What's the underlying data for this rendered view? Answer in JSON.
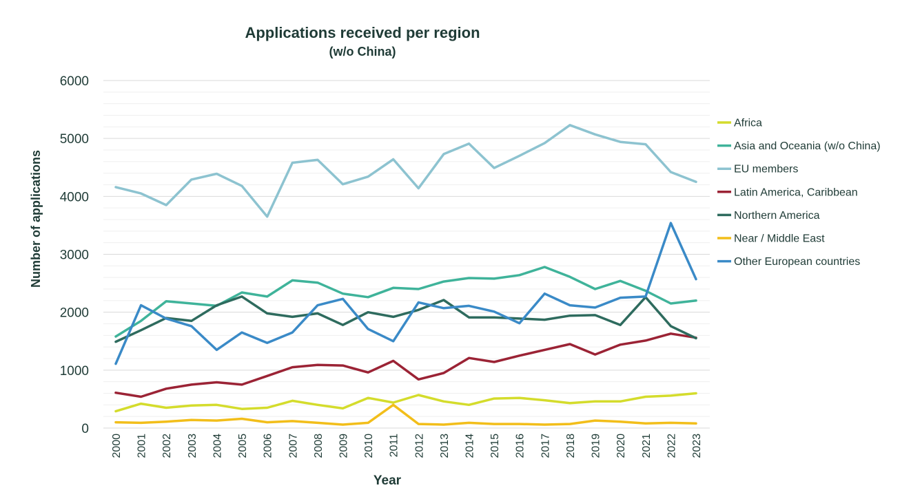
{
  "chart_data": {
    "type": "line",
    "title": "Applications received per region",
    "subtitle": "(w/o China)",
    "xlabel": "Year",
    "ylabel": "Number of applications",
    "ylim": [
      0,
      6000
    ],
    "yticks": [
      "0",
      "1000",
      "2000",
      "3000",
      "4000",
      "5000",
      "6000"
    ],
    "ytick_values": [
      0,
      1000,
      2000,
      3000,
      4000,
      5000,
      6000
    ],
    "minor_step": 200,
    "categories": [
      "2000",
      "2001",
      "2002",
      "2003",
      "2004",
      "2005",
      "2006",
      "2007",
      "2008",
      "2009",
      "2010",
      "2011",
      "2012",
      "2013",
      "2014",
      "2015",
      "2016",
      "2017",
      "2018",
      "2019",
      "2020",
      "2021",
      "2022",
      "2023"
    ],
    "legend_position": "right",
    "series": [
      {
        "name": "Africa",
        "color": "#d4dc2c",
        "values": [
          290,
          420,
          350,
          390,
          400,
          330,
          350,
          470,
          400,
          340,
          520,
          440,
          570,
          460,
          400,
          510,
          520,
          480,
          430,
          460,
          460,
          540,
          560,
          600
        ]
      },
      {
        "name": "Asia and Oceania (w/o China)",
        "color": "#3fb39a",
        "values": [
          1580,
          1850,
          2190,
          2150,
          2110,
          2340,
          2270,
          2550,
          2510,
          2320,
          2260,
          2420,
          2400,
          2530,
          2590,
          2580,
          2640,
          2780,
          2610,
          2400,
          2540,
          2370,
          2150,
          2200
        ]
      },
      {
        "name": "EU members",
        "color": "#8dc3d0",
        "values": [
          4160,
          4050,
          3850,
          4290,
          4390,
          4180,
          3650,
          4580,
          4630,
          4210,
          4340,
          4640,
          4140,
          4730,
          4910,
          4490,
          4700,
          4920,
          5230,
          5070,
          4940,
          4900,
          4420,
          4250
        ]
      },
      {
        "name": "Latin America, Caribbean",
        "color": "#9b2335",
        "values": [
          610,
          540,
          680,
          750,
          790,
          750,
          900,
          1050,
          1090,
          1080,
          960,
          1160,
          840,
          950,
          1210,
          1140,
          1250,
          1350,
          1450,
          1270,
          1440,
          1510,
          1630,
          1560
        ]
      },
      {
        "name": "Northern America",
        "color": "#2e6b5e",
        "values": [
          1490,
          1690,
          1900,
          1850,
          2120,
          2270,
          1980,
          1920,
          1980,
          1780,
          2000,
          1920,
          2040,
          2210,
          1910,
          1910,
          1890,
          1870,
          1940,
          1950,
          1780,
          2260,
          1760,
          1550
        ]
      },
      {
        "name": "Near / Middle East",
        "color": "#f2be1a",
        "values": [
          100,
          90,
          110,
          140,
          130,
          160,
          100,
          120,
          90,
          60,
          90,
          400,
          70,
          60,
          90,
          70,
          70,
          60,
          70,
          130,
          110,
          80,
          90,
          80
        ]
      },
      {
        "name": "Other European countries",
        "color": "#3a8ac7",
        "values": [
          1110,
          2120,
          1890,
          1760,
          1350,
          1650,
          1470,
          1650,
          2120,
          2230,
          1710,
          1500,
          2170,
          2070,
          2110,
          2010,
          1810,
          2320,
          2120,
          2080,
          2250,
          2270,
          3540,
          2570
        ]
      }
    ]
  }
}
